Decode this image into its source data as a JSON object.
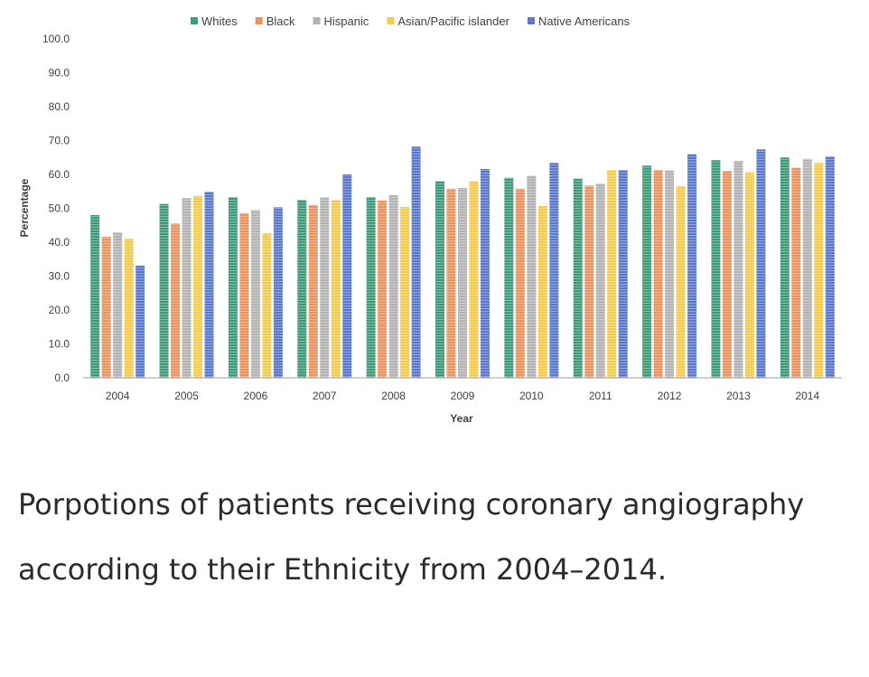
{
  "colors": {
    "Whites": "#3e9a78",
    "Black": "#e9935e",
    "Hispanic": "#b3b3b3",
    "Asian/Pacific islander": "#f5cb4e",
    "Native Americans": "#5b78c9"
  },
  "chart_data": {
    "type": "bar",
    "title": "",
    "xlabel": "Year",
    "ylabel": "Percentage",
    "ylim": [
      0,
      100
    ],
    "yticks": [
      "0.0",
      "10.0",
      "20.0",
      "30.0",
      "40.0",
      "50.0",
      "60.0",
      "70.0",
      "80.0",
      "90.0",
      "100.0"
    ],
    "legend_position": "top-center",
    "grid": false,
    "categories": [
      "2004",
      "2005",
      "2006",
      "2007",
      "2008",
      "2009",
      "2010",
      "2011",
      "2012",
      "2013",
      "2014"
    ],
    "series": [
      {
        "name": "Whites",
        "values": [
          48,
          51.3,
          53.3,
          52.5,
          53.3,
          58,
          59,
          58.8,
          62.6,
          64.2,
          65
        ]
      },
      {
        "name": "Black",
        "values": [
          41.6,
          45.5,
          48.6,
          51,
          52.3,
          55.8,
          55.8,
          56.7,
          61.3,
          61,
          62
        ]
      },
      {
        "name": "Hispanic",
        "values": [
          42.9,
          53,
          49.5,
          53.3,
          53.9,
          56,
          59.6,
          57.3,
          61.2,
          64,
          64.6
        ]
      },
      {
        "name": "Asian/Pacific islander",
        "values": [
          41,
          53.7,
          42.6,
          52.5,
          50.4,
          58,
          50.7,
          61.3,
          56.6,
          60.7,
          63.4
        ]
      },
      {
        "name": "Native Americans",
        "values": [
          33.1,
          54.9,
          50.3,
          60,
          68.2,
          61.6,
          63.4,
          61.3,
          66,
          67.4,
          65.3
        ]
      }
    ]
  },
  "caption": "Porpotions of patients receiving coronary angiography according to their Ethnicity from 2004–2014."
}
